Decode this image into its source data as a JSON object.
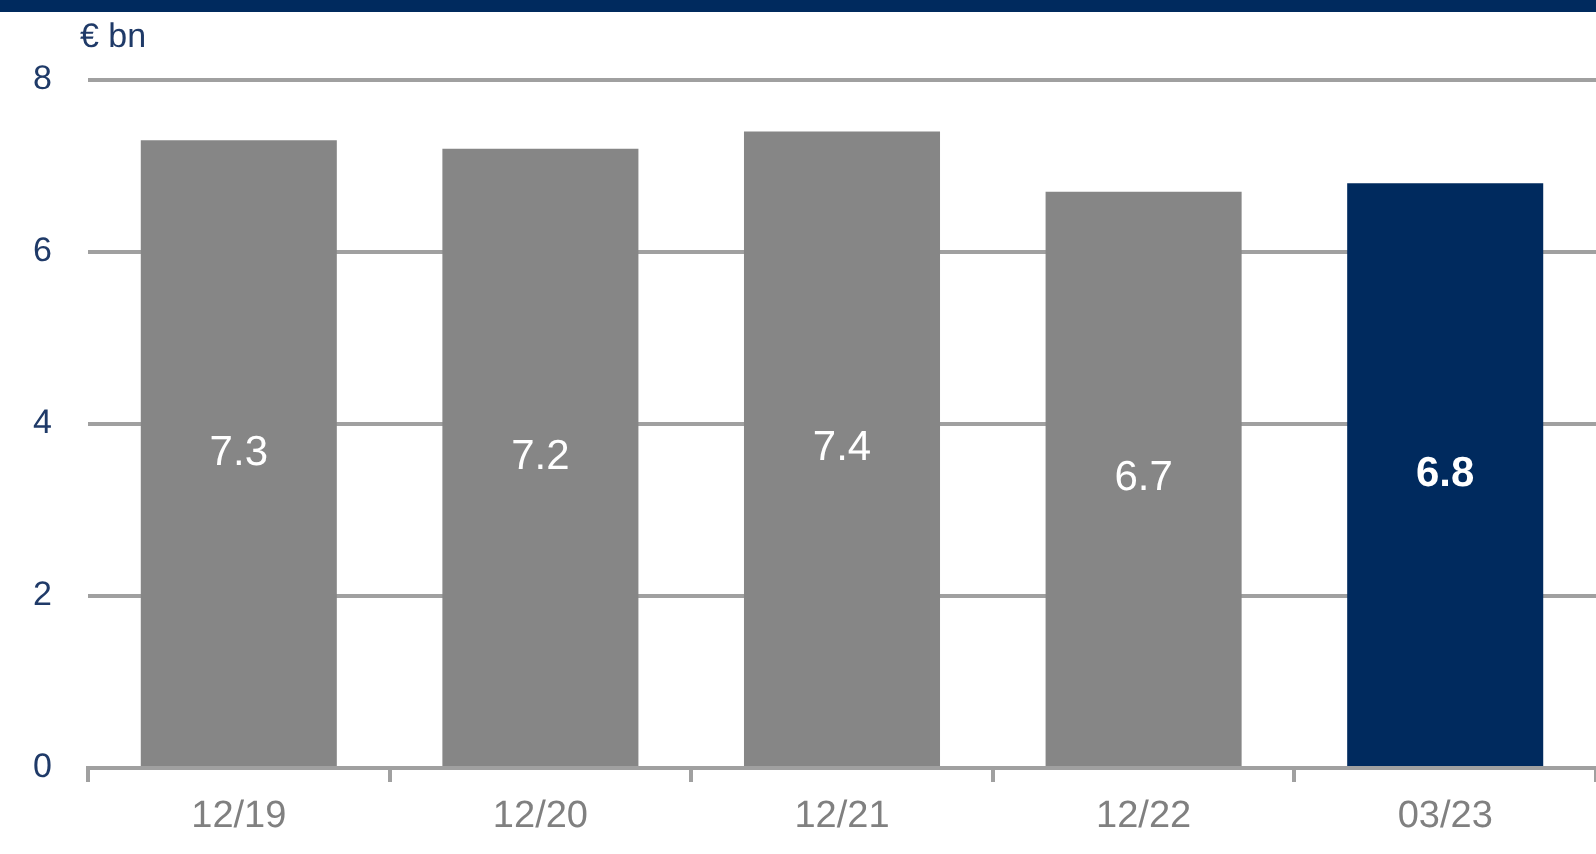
{
  "chart_data": {
    "type": "bar",
    "ylabel": "€ bn",
    "categories": [
      "12/19",
      "12/20",
      "12/21",
      "12/22",
      "03/23"
    ],
    "values": [
      7.3,
      7.2,
      7.4,
      6.7,
      6.8
    ],
    "colors": [
      "#868686",
      "#868686",
      "#868686",
      "#868686",
      "#002a5e"
    ],
    "ylim": [
      0,
      8
    ],
    "yticks": [
      0,
      2,
      4,
      6,
      8
    ],
    "grid": "y",
    "legend": false,
    "data_labels": true
  }
}
